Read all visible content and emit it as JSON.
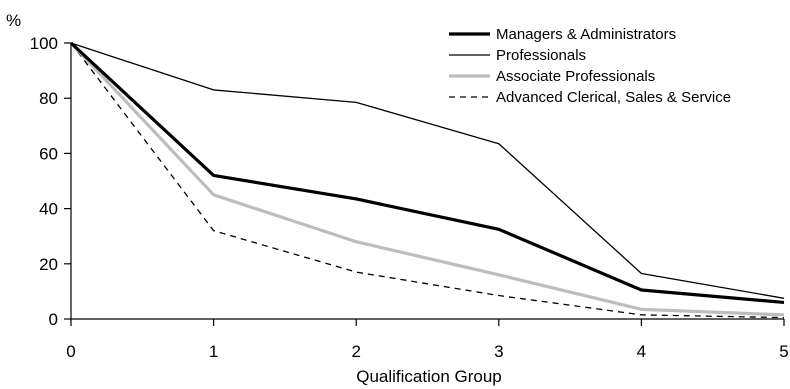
{
  "chart_data": {
    "type": "line",
    "title": "",
    "xlabel": "Qualification Group",
    "ylabel": "%",
    "x": [
      0,
      1,
      2,
      3,
      4,
      5
    ],
    "xlim": [
      0,
      5
    ],
    "ylim": [
      0,
      100
    ],
    "x_ticks": [
      "0",
      "1",
      "2",
      "3",
      "4",
      "5"
    ],
    "y_ticks": [
      "0",
      "20",
      "40",
      "60",
      "80",
      "100"
    ],
    "grid": false,
    "legend_position": "top-right",
    "series": [
      {
        "name": "Managers & Administrators",
        "values": [
          100,
          52,
          43.5,
          32.5,
          10.5,
          6
        ],
        "color": "#000000",
        "style": "thick"
      },
      {
        "name": "Professionals",
        "values": [
          100,
          83,
          78.5,
          63.5,
          16.5,
          7.5
        ],
        "color": "#000000",
        "style": "thin"
      },
      {
        "name": "Associate Professionals",
        "values": [
          100,
          45,
          28,
          16,
          3.5,
          1.5
        ],
        "color": "#bdbdbd",
        "style": "thick"
      },
      {
        "name": "Advanced Clerical, Sales & Service",
        "values": [
          100,
          32,
          17,
          8.5,
          1.5,
          0.5
        ],
        "color": "#000000",
        "style": "dashed"
      }
    ]
  }
}
